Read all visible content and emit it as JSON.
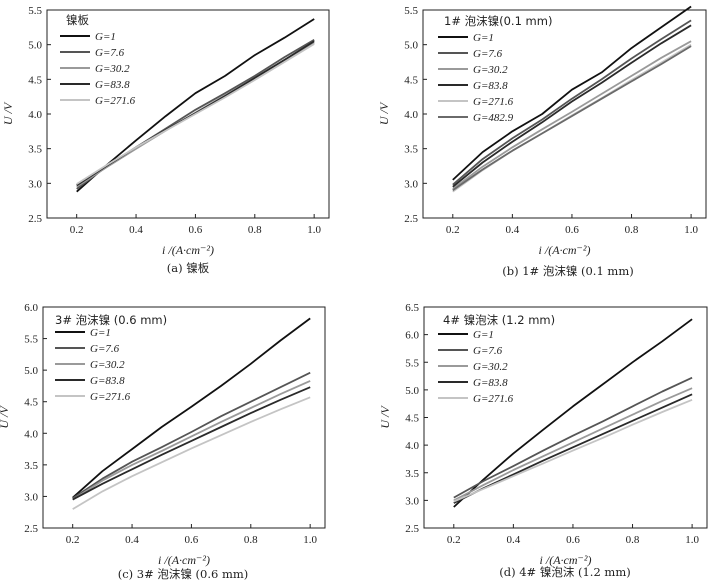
{
  "chart_data": [
    {
      "type": "line",
      "panel_title": "镍板",
      "caption": "(a) 镍板",
      "xlabel": "i /(A·cm⁻²)",
      "ylabel": "U /V",
      "xlim": [
        0.1,
        1.05
      ],
      "ylim": [
        2.5,
        5.5
      ],
      "xticks": [
        0.2,
        0.4,
        0.6,
        0.8,
        1.0
      ],
      "yticks": [
        2.5,
        3.0,
        3.5,
        4.0,
        4.5,
        5.0,
        5.5
      ],
      "x": [
        0.2,
        0.3,
        0.4,
        0.5,
        0.6,
        0.7,
        0.8,
        0.9,
        1.0
      ],
      "series": [
        {
          "name": "G=1",
          "color": "#111111",
          "values": [
            2.88,
            3.26,
            3.62,
            3.97,
            4.3,
            4.55,
            4.85,
            5.1,
            5.37
          ]
        },
        {
          "name": "G=7.6",
          "color": "#555555",
          "values": [
            2.92,
            3.24,
            3.52,
            3.79,
            4.06,
            4.3,
            4.55,
            4.82,
            5.07
          ]
        },
        {
          "name": "G=30.2",
          "color": "#9a9a9a",
          "values": [
            2.95,
            3.23,
            3.5,
            3.76,
            4.02,
            4.27,
            4.52,
            4.78,
            5.03
          ]
        },
        {
          "name": "G=83.8",
          "color": "#2a2a2a",
          "values": [
            2.97,
            3.25,
            3.52,
            3.77,
            4.01,
            4.26,
            4.52,
            4.78,
            5.05
          ]
        },
        {
          "name": "G=271.6",
          "color": "#c4c4c4",
          "values": [
            2.99,
            3.26,
            3.52,
            3.76,
            4.0,
            4.24,
            4.49,
            4.75,
            5.01
          ]
        }
      ]
    },
    {
      "type": "line",
      "panel_title": "1# 泡沫镍(0.1 mm)",
      "caption": "(b) 1# 泡沫镍 (0.1 mm)",
      "xlabel": "i /(A·cm⁻²)",
      "ylabel": "U /V",
      "xlim": [
        0.1,
        1.05
      ],
      "ylim": [
        2.5,
        5.5
      ],
      "xticks": [
        0.2,
        0.4,
        0.6,
        0.8,
        1.0
      ],
      "yticks": [
        2.5,
        3.0,
        3.5,
        4.0,
        4.5,
        5.0,
        5.5
      ],
      "x": [
        0.2,
        0.3,
        0.4,
        0.5,
        0.6,
        0.7,
        0.8,
        0.9,
        1.0
      ],
      "series": [
        {
          "name": "G=1",
          "color": "#111111",
          "values": [
            3.05,
            3.45,
            3.75,
            4.0,
            4.35,
            4.6,
            4.95,
            5.25,
            5.55
          ]
        },
        {
          "name": "G=7.6",
          "color": "#555555",
          "values": [
            2.98,
            3.35,
            3.65,
            3.92,
            4.22,
            4.5,
            4.8,
            5.08,
            5.35
          ]
        },
        {
          "name": "G=30.2",
          "color": "#9a9a9a",
          "values": [
            2.92,
            3.24,
            3.52,
            3.78,
            4.03,
            4.29,
            4.55,
            4.81,
            5.05
          ]
        },
        {
          "name": "G=83.8",
          "color": "#2a2a2a",
          "values": [
            2.95,
            3.3,
            3.6,
            3.88,
            4.18,
            4.45,
            4.74,
            5.02,
            5.28
          ]
        },
        {
          "name": "G=271.6",
          "color": "#c4c4c4",
          "values": [
            2.88,
            3.19,
            3.47,
            3.72,
            3.98,
            4.23,
            4.49,
            4.74,
            5.0
          ]
        },
        {
          "name": "G=482.9",
          "color": "#6a6a6a",
          "values": [
            2.9,
            3.2,
            3.47,
            3.72,
            3.97,
            4.22,
            4.47,
            4.72,
            4.98
          ]
        }
      ]
    },
    {
      "type": "line",
      "panel_title": "3# 泡沫镍 (0.6 mm)",
      "caption": "(c) 3# 泡沫镍 (0.6 mm)",
      "xlabel": "i /(A·cm⁻²)",
      "ylabel": "U /V",
      "xlim": [
        0.1,
        1.05
      ],
      "ylim": [
        2.5,
        6.0
      ],
      "xticks": [
        0.2,
        0.4,
        0.6,
        0.8,
        1.0
      ],
      "yticks": [
        2.5,
        3.0,
        3.5,
        4.0,
        4.5,
        5.0,
        5.5,
        6.0
      ],
      "x": [
        0.2,
        0.3,
        0.4,
        0.5,
        0.6,
        0.7,
        0.8,
        0.9,
        1.0
      ],
      "series": [
        {
          "name": "G=1",
          "color": "#111111",
          "values": [
            2.98,
            3.4,
            3.75,
            4.1,
            4.42,
            4.75,
            5.1,
            5.47,
            5.82
          ]
        },
        {
          "name": "G=7.6",
          "color": "#555555",
          "values": [
            2.97,
            3.28,
            3.55,
            3.78,
            4.02,
            4.27,
            4.5,
            4.73,
            4.96
          ]
        },
        {
          "name": "G=30.2",
          "color": "#9a9a9a",
          "values": [
            2.95,
            3.25,
            3.5,
            3.72,
            3.95,
            4.18,
            4.4,
            4.62,
            4.83
          ]
        },
        {
          "name": "G=83.8",
          "color": "#2a2a2a",
          "values": [
            2.95,
            3.2,
            3.43,
            3.66,
            3.88,
            4.1,
            4.32,
            4.53,
            4.73
          ]
        },
        {
          "name": "G=271.6",
          "color": "#c4c4c4",
          "values": [
            2.8,
            3.08,
            3.32,
            3.54,
            3.76,
            3.97,
            4.18,
            4.38,
            4.57
          ]
        }
      ]
    },
    {
      "type": "line",
      "panel_title": "4# 镍泡沫 (1.2 mm)",
      "caption": "(d) 4# 镍泡沫 (1.2 mm)",
      "xlabel": "i /(A·cm⁻²)",
      "ylabel": "U /V",
      "xlim": [
        0.1,
        1.05
      ],
      "ylim": [
        2.5,
        6.5
      ],
      "xticks": [
        0.2,
        0.4,
        0.6,
        0.8,
        1.0
      ],
      "yticks": [
        2.5,
        3.0,
        3.5,
        4.0,
        4.5,
        5.0,
        5.5,
        6.0,
        6.5
      ],
      "x": [
        0.2,
        0.3,
        0.4,
        0.5,
        0.6,
        0.7,
        0.8,
        0.9,
        1.0
      ],
      "series": [
        {
          "name": "G=1",
          "color": "#111111",
          "values": [
            2.88,
            3.38,
            3.85,
            4.28,
            4.7,
            5.1,
            5.5,
            5.88,
            6.28
          ]
        },
        {
          "name": "G=7.6",
          "color": "#555555",
          "values": [
            3.05,
            3.35,
            3.62,
            3.9,
            4.17,
            4.43,
            4.7,
            4.97,
            5.22
          ]
        },
        {
          "name": "G=30.2",
          "color": "#9a9a9a",
          "values": [
            3.0,
            3.28,
            3.55,
            3.8,
            4.05,
            4.3,
            4.55,
            4.8,
            5.03
          ]
        },
        {
          "name": "G=83.8",
          "color": "#2a2a2a",
          "values": [
            2.95,
            3.22,
            3.47,
            3.72,
            3.96,
            4.2,
            4.44,
            4.68,
            4.92
          ]
        },
        {
          "name": "G=271.6",
          "color": "#c4c4c4",
          "values": [
            2.98,
            3.21,
            3.44,
            3.67,
            3.9,
            4.13,
            4.37,
            4.6,
            4.82
          ]
        }
      ]
    }
  ]
}
